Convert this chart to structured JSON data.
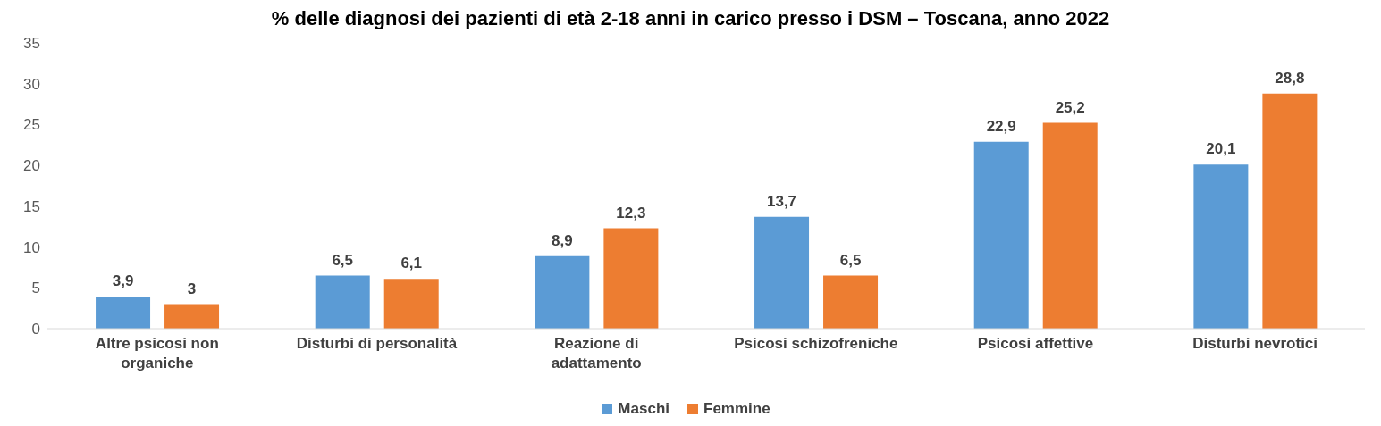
{
  "chart_data": {
    "type": "bar",
    "title": "% delle diagnosi dei pazienti di età 2-18 anni in carico presso i DSM – Toscana, anno 2022",
    "categories": [
      "Altre psicosi non organiche",
      "Disturbi di personalità",
      "Reazione di adattamento",
      "Psicosi schizofreniche",
      "Psicosi affettive",
      "Disturbi nevrotici"
    ],
    "series": [
      {
        "name": "Maschi",
        "color": "#5b9bd5",
        "values": [
          3.9,
          6.5,
          8.9,
          13.7,
          22.9,
          20.1
        ],
        "value_labels": [
          "3,9",
          "6,5",
          "8,9",
          "13,7",
          "22,9",
          "20,1"
        ]
      },
      {
        "name": "Femmine",
        "color": "#ed7d31",
        "values": [
          3,
          6.1,
          12.3,
          6.5,
          25.2,
          28.8
        ],
        "value_labels": [
          "3",
          "6,1",
          "12,3",
          "6,5",
          "25,2",
          "28,8"
        ]
      }
    ],
    "ylim": [
      0,
      35
    ],
    "yticks": [
      0,
      5,
      10,
      15,
      20,
      25,
      30,
      35
    ],
    "grid": false,
    "legend": "bottom"
  }
}
